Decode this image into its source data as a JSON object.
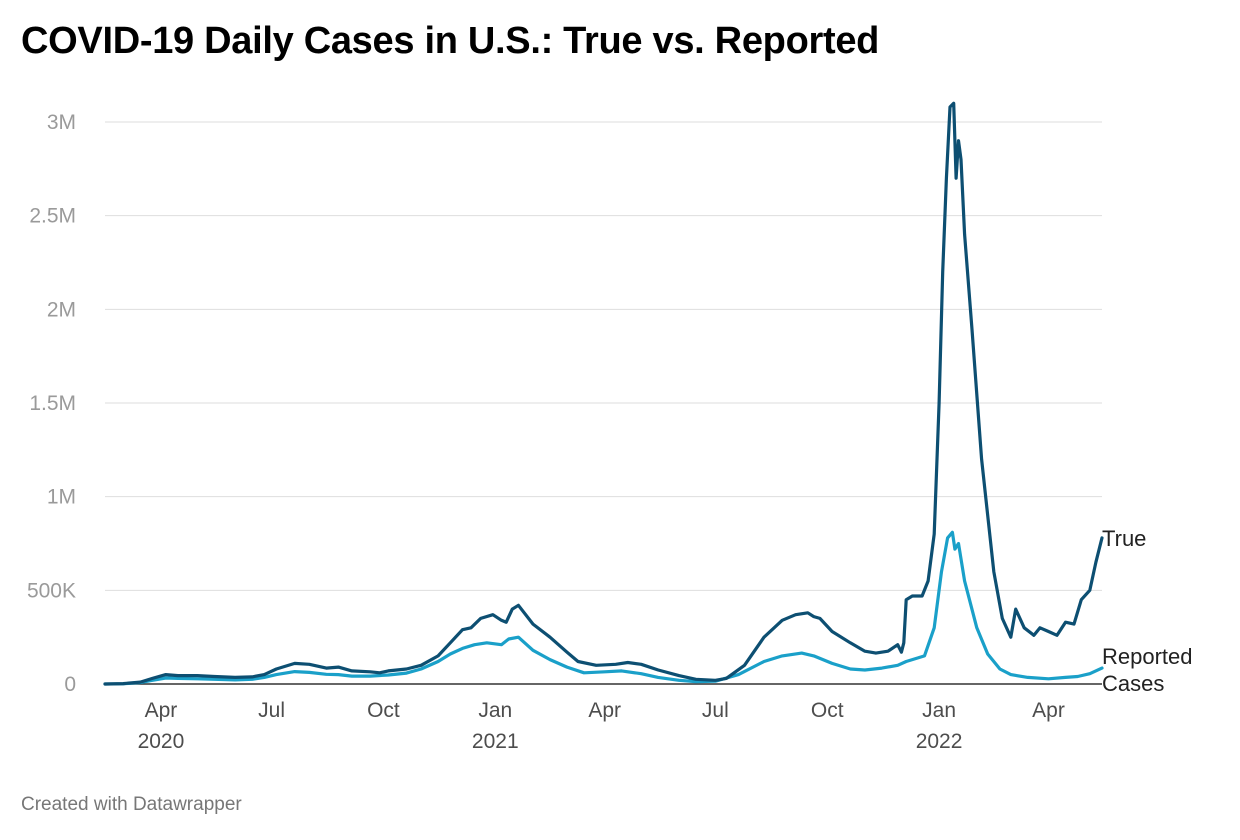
{
  "title": "COVID-19 Daily Cases in U.S.: True vs. Reported",
  "footer": "Created with Datawrapper",
  "chart_data": {
    "type": "line",
    "title": "COVID-19 Daily Cases in U.S.: True vs. Reported",
    "xlabel": "",
    "ylabel": "",
    "x_range": [
      "2020-02-15",
      "2022-05-15"
    ],
    "ylim": [
      0,
      3000000
    ],
    "y_ticks": [
      0,
      500000,
      1000000,
      1500000,
      2000000,
      2500000,
      3000000
    ],
    "y_tick_labels": [
      "0",
      "500K",
      "1M",
      "1.5M",
      "2M",
      "2.5M",
      "3M"
    ],
    "x_ticks": [
      {
        "date": "2020-04-01",
        "label": "Apr",
        "year": "2020"
      },
      {
        "date": "2020-07-01",
        "label": "Jul",
        "year": ""
      },
      {
        "date": "2020-10-01",
        "label": "Oct",
        "year": ""
      },
      {
        "date": "2021-01-01",
        "label": "Jan",
        "year": "2021"
      },
      {
        "date": "2021-04-01",
        "label": "Apr",
        "year": ""
      },
      {
        "date": "2021-07-01",
        "label": "Jul",
        "year": ""
      },
      {
        "date": "2021-10-01",
        "label": "Oct",
        "year": ""
      },
      {
        "date": "2022-01-01",
        "label": "Jan",
        "year": "2022"
      },
      {
        "date": "2022-04-01",
        "label": "Apr",
        "year": ""
      }
    ],
    "grid": true,
    "series": [
      {
        "name": "True",
        "color": "#0d4f72",
        "points": [
          [
            "2020-02-15",
            0
          ],
          [
            "2020-03-01",
            2000
          ],
          [
            "2020-03-15",
            10000
          ],
          [
            "2020-03-25",
            30000
          ],
          [
            "2020-04-05",
            50000
          ],
          [
            "2020-04-15",
            45000
          ],
          [
            "2020-05-01",
            45000
          ],
          [
            "2020-05-15",
            40000
          ],
          [
            "2020-06-01",
            35000
          ],
          [
            "2020-06-15",
            38000
          ],
          [
            "2020-06-25",
            50000
          ],
          [
            "2020-07-05",
            80000
          ],
          [
            "2020-07-20",
            110000
          ],
          [
            "2020-08-01",
            105000
          ],
          [
            "2020-08-15",
            85000
          ],
          [
            "2020-08-25",
            90000
          ],
          [
            "2020-09-05",
            70000
          ],
          [
            "2020-09-20",
            65000
          ],
          [
            "2020-09-28",
            60000
          ],
          [
            "2020-10-05",
            70000
          ],
          [
            "2020-10-20",
            80000
          ],
          [
            "2020-11-01",
            100000
          ],
          [
            "2020-11-15",
            150000
          ],
          [
            "2020-11-25",
            220000
          ],
          [
            "2020-12-05",
            290000
          ],
          [
            "2020-12-12",
            300000
          ],
          [
            "2020-12-20",
            350000
          ],
          [
            "2020-12-30",
            370000
          ],
          [
            "2021-01-06",
            340000
          ],
          [
            "2021-01-10",
            330000
          ],
          [
            "2021-01-15",
            400000
          ],
          [
            "2021-01-20",
            420000
          ],
          [
            "2021-02-01",
            320000
          ],
          [
            "2021-02-15",
            250000
          ],
          [
            "2021-03-01",
            170000
          ],
          [
            "2021-03-10",
            120000
          ],
          [
            "2021-03-25",
            100000
          ],
          [
            "2021-04-10",
            105000
          ],
          [
            "2021-04-20",
            115000
          ],
          [
            "2021-05-01",
            105000
          ],
          [
            "2021-05-15",
            75000
          ],
          [
            "2021-06-01",
            45000
          ],
          [
            "2021-06-15",
            25000
          ],
          [
            "2021-07-01",
            20000
          ],
          [
            "2021-07-10",
            30000
          ],
          [
            "2021-07-25",
            100000
          ],
          [
            "2021-08-10",
            250000
          ],
          [
            "2021-08-25",
            340000
          ],
          [
            "2021-09-05",
            370000
          ],
          [
            "2021-09-15",
            380000
          ],
          [
            "2021-09-20",
            360000
          ],
          [
            "2021-09-25",
            350000
          ],
          [
            "2021-10-05",
            280000
          ],
          [
            "2021-10-20",
            220000
          ],
          [
            "2021-11-01",
            175000
          ],
          [
            "2021-11-10",
            165000
          ],
          [
            "2021-11-20",
            175000
          ],
          [
            "2021-11-28",
            210000
          ],
          [
            "2021-12-01",
            170000
          ],
          [
            "2021-12-03",
            220000
          ],
          [
            "2021-12-05",
            450000
          ],
          [
            "2021-12-10",
            470000
          ],
          [
            "2021-12-18",
            470000
          ],
          [
            "2021-12-23",
            550000
          ],
          [
            "2021-12-28",
            800000
          ],
          [
            "2022-01-01",
            1500000
          ],
          [
            "2022-01-04",
            2200000
          ],
          [
            "2022-01-07",
            2700000
          ],
          [
            "2022-01-10",
            3080000
          ],
          [
            "2022-01-13",
            3100000
          ],
          [
            "2022-01-15",
            2700000
          ],
          [
            "2022-01-17",
            2900000
          ],
          [
            "2022-01-19",
            2800000
          ],
          [
            "2022-01-22",
            2400000
          ],
          [
            "2022-01-28",
            1900000
          ],
          [
            "2022-02-05",
            1200000
          ],
          [
            "2022-02-15",
            600000
          ],
          [
            "2022-02-22",
            350000
          ],
          [
            "2022-03-01",
            250000
          ],
          [
            "2022-03-05",
            400000
          ],
          [
            "2022-03-12",
            300000
          ],
          [
            "2022-03-20",
            260000
          ],
          [
            "2022-03-25",
            300000
          ],
          [
            "2022-04-01",
            280000
          ],
          [
            "2022-04-08",
            260000
          ],
          [
            "2022-04-15",
            330000
          ],
          [
            "2022-04-22",
            320000
          ],
          [
            "2022-04-28",
            450000
          ],
          [
            "2022-05-05",
            500000
          ],
          [
            "2022-05-10",
            650000
          ],
          [
            "2022-05-15",
            780000
          ]
        ]
      },
      {
        "name": "Reported Cases",
        "color": "#1aa0c9",
        "points": [
          [
            "2020-02-15",
            0
          ],
          [
            "2020-03-01",
            1000
          ],
          [
            "2020-03-15",
            8000
          ],
          [
            "2020-03-25",
            20000
          ],
          [
            "2020-04-05",
            32000
          ],
          [
            "2020-04-15",
            30000
          ],
          [
            "2020-05-01",
            28000
          ],
          [
            "2020-05-15",
            25000
          ],
          [
            "2020-06-01",
            22000
          ],
          [
            "2020-06-15",
            25000
          ],
          [
            "2020-06-25",
            35000
          ],
          [
            "2020-07-05",
            50000
          ],
          [
            "2020-07-20",
            66000
          ],
          [
            "2020-08-01",
            62000
          ],
          [
            "2020-08-15",
            52000
          ],
          [
            "2020-08-25",
            50000
          ],
          [
            "2020-09-05",
            42000
          ],
          [
            "2020-09-20",
            42000
          ],
          [
            "2020-10-05",
            48000
          ],
          [
            "2020-10-20",
            58000
          ],
          [
            "2020-11-01",
            80000
          ],
          [
            "2020-11-15",
            120000
          ],
          [
            "2020-11-25",
            160000
          ],
          [
            "2020-12-05",
            190000
          ],
          [
            "2020-12-15",
            210000
          ],
          [
            "2020-12-25",
            220000
          ],
          [
            "2021-01-06",
            210000
          ],
          [
            "2021-01-12",
            240000
          ],
          [
            "2021-01-20",
            250000
          ],
          [
            "2021-02-01",
            180000
          ],
          [
            "2021-02-15",
            130000
          ],
          [
            "2021-03-01",
            90000
          ],
          [
            "2021-03-15",
            60000
          ],
          [
            "2021-04-01",
            65000
          ],
          [
            "2021-04-15",
            70000
          ],
          [
            "2021-05-01",
            55000
          ],
          [
            "2021-05-15",
            35000
          ],
          [
            "2021-06-01",
            20000
          ],
          [
            "2021-06-15",
            13000
          ],
          [
            "2021-07-01",
            15000
          ],
          [
            "2021-07-20",
            50000
          ],
          [
            "2021-08-10",
            120000
          ],
          [
            "2021-08-25",
            150000
          ],
          [
            "2021-09-10",
            165000
          ],
          [
            "2021-09-20",
            150000
          ],
          [
            "2021-10-05",
            110000
          ],
          [
            "2021-10-20",
            80000
          ],
          [
            "2021-11-01",
            75000
          ],
          [
            "2021-11-15",
            85000
          ],
          [
            "2021-11-28",
            100000
          ],
          [
            "2021-12-05",
            120000
          ],
          [
            "2021-12-20",
            150000
          ],
          [
            "2021-12-28",
            300000
          ],
          [
            "2022-01-03",
            600000
          ],
          [
            "2022-01-08",
            780000
          ],
          [
            "2022-01-12",
            810000
          ],
          [
            "2022-01-14",
            720000
          ],
          [
            "2022-01-17",
            750000
          ],
          [
            "2022-01-22",
            550000
          ],
          [
            "2022-02-01",
            300000
          ],
          [
            "2022-02-10",
            160000
          ],
          [
            "2022-02-20",
            80000
          ],
          [
            "2022-03-01",
            50000
          ],
          [
            "2022-03-15",
            35000
          ],
          [
            "2022-04-01",
            28000
          ],
          [
            "2022-04-15",
            35000
          ],
          [
            "2022-04-25",
            40000
          ],
          [
            "2022-05-05",
            55000
          ],
          [
            "2022-05-15",
            85000
          ]
        ]
      }
    ]
  }
}
